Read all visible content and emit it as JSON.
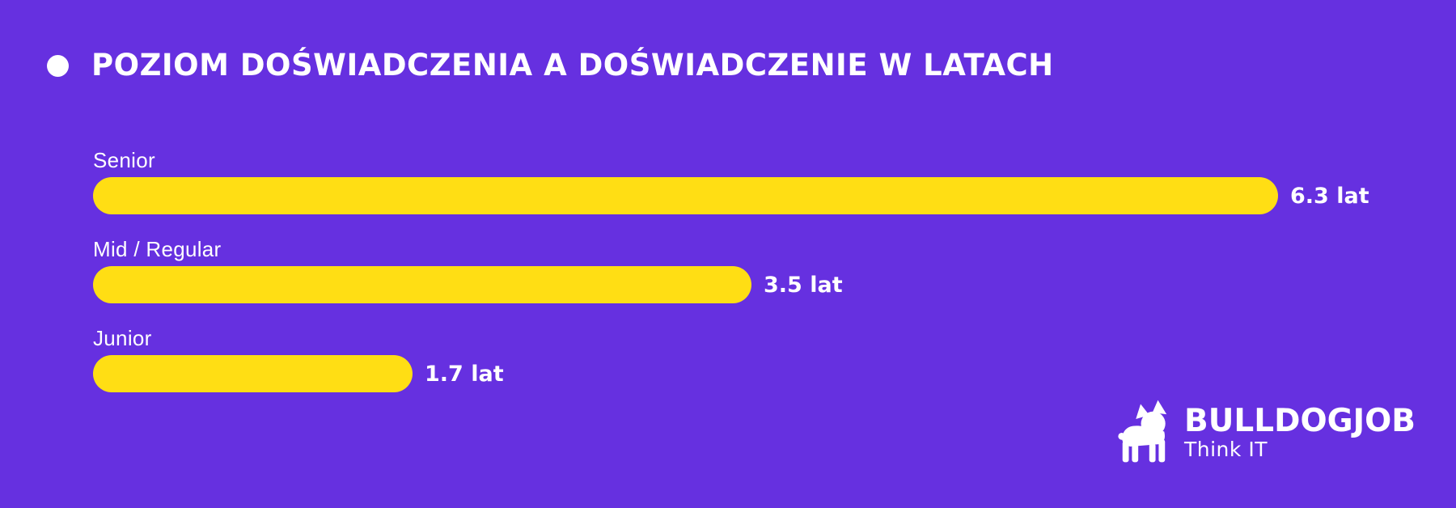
{
  "title": "POZIOM DOŚWIADCZENIA A DOŚWIADCZENIE W LATACH",
  "colors": {
    "background": "#6630E0",
    "bar": "#FFDE14",
    "text": "#FFFFFF"
  },
  "icons": {
    "title_bullet": "filled-circle",
    "logo_mark": "bulldog-silhouette"
  },
  "chart_data": {
    "type": "bar",
    "orientation": "horizontal",
    "title": "POZIOM DOŚWIADCZENIA A DOŚWIADCZENIE W LATACH",
    "categories": [
      "Senior",
      "Mid / Regular",
      "Junior"
    ],
    "values": [
      6.3,
      3.5,
      1.7
    ],
    "value_labels": [
      "6.3 lat",
      "3.5 lat",
      "1.7 lat"
    ],
    "unit": "lat",
    "xlabel": "",
    "ylabel": "",
    "xlim": [
      0,
      6.3
    ],
    "grid": false,
    "legend": false,
    "bar_color": "#FFDE14",
    "background_color": "#6630E0"
  },
  "logo": {
    "brand": "BULLDOGJOB",
    "tagline": "Think IT"
  }
}
